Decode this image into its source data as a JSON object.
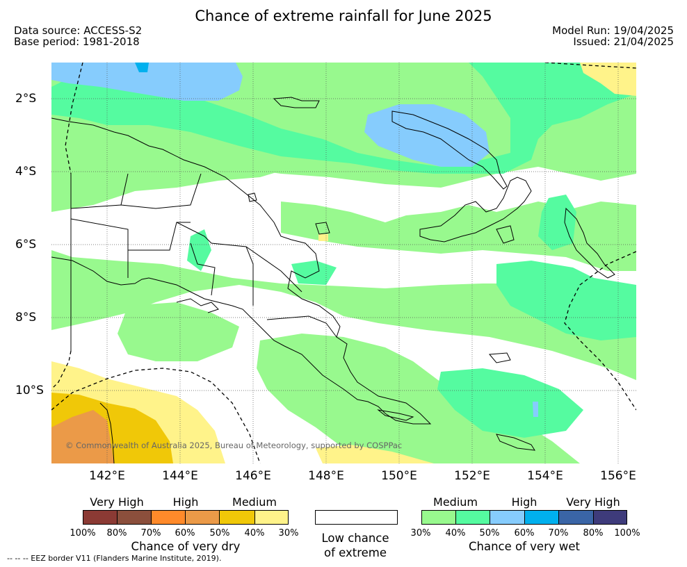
{
  "title": "Chance of extreme rainfall for June 2025",
  "meta": {
    "data_source": "Data source: ACCESS-S2",
    "base_period": "Base period: 1981-2018",
    "model_run": "Model Run: 19/04/2025",
    "issued": "Issued: 21/04/2025"
  },
  "map": {
    "lat_labels": [
      "2°S",
      "4°S",
      "6°S",
      "8°S",
      "10°S"
    ],
    "lon_labels": [
      "142°E",
      "144°E",
      "146°E",
      "148°E",
      "150°E",
      "152°E",
      "154°E",
      "156°E"
    ],
    "copyright": "© Commonwealth of Australia 2025, Bureau of Meteorology, supported by COSPPac",
    "grid": "dotted",
    "colors": {
      "land_outline": "#000000",
      "eez_border": "#000000"
    }
  },
  "legend": {
    "dry": {
      "title": "Chance of very dry",
      "categories": [
        "Very High",
        "High",
        "Medium"
      ],
      "percent_labels": [
        "100%",
        "80%",
        "70%",
        "60%",
        "50%",
        "40%",
        "30%"
      ],
      "colors": [
        "#8b3a34",
        "#8b4f3c",
        "#ff8a2a",
        "#eb9a48",
        "#f0c808",
        "#fff38a"
      ]
    },
    "neutral": {
      "title_line1": "Low chance",
      "title_line2": "of extreme",
      "color": "#ffffff"
    },
    "wet": {
      "title": "Chance of very wet",
      "categories": [
        "Medium",
        "High",
        "Very High"
      ],
      "percent_labels": [
        "30%",
        "40%",
        "50%",
        "60%",
        "70%",
        "80%",
        "100%"
      ],
      "colors": [
        "#98f98e",
        "#55fba0",
        "#86ccfd",
        "#00b0ee",
        "#3a65a6",
        "#3e3b7b"
      ]
    }
  },
  "footnote": "--  --  -- EEZ border V11 (Flanders Marine Institute, 2019)."
}
